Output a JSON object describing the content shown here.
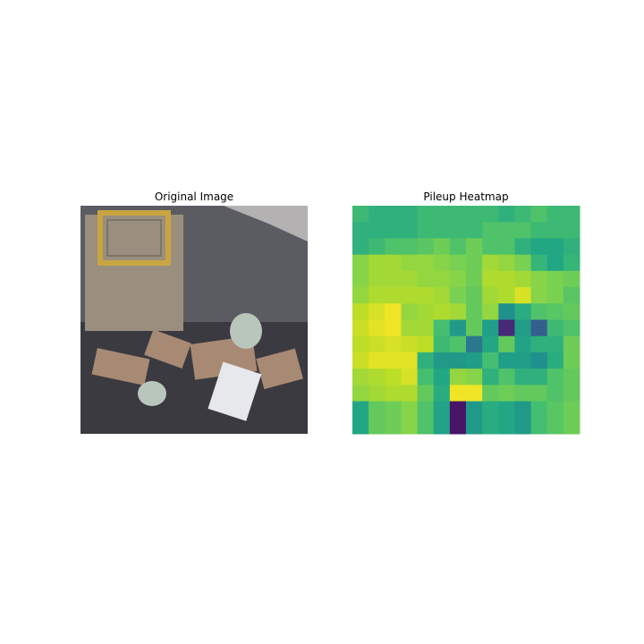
{
  "chart_data": [
    {
      "type": "image",
      "title": "Original Image",
      "description_palette": {
        "floor": "#3b3a40",
        "wall": "#5a5c62",
        "machine_body": "#9a8e7e",
        "machine_frame": "#c9a540",
        "cardboard": "#a88a74",
        "paper": "#e6e8ec",
        "bag": "#b8c6bc",
        "light": "#d8d6d4"
      }
    },
    {
      "type": "heatmap",
      "title": "Pileup Heatmap",
      "rows": 14,
      "cols": 14,
      "colormap": "viridis",
      "vmin": 0,
      "vmax": 1,
      "values": [
        [
          0.68,
          0.64,
          0.64,
          0.64,
          0.68,
          0.68,
          0.68,
          0.68,
          0.68,
          0.64,
          0.68,
          0.72,
          0.68,
          0.68
        ],
        [
          0.64,
          0.64,
          0.64,
          0.64,
          0.68,
          0.68,
          0.68,
          0.68,
          0.72,
          0.72,
          0.72,
          0.68,
          0.68,
          0.68
        ],
        [
          0.64,
          0.68,
          0.72,
          0.72,
          0.74,
          0.78,
          0.72,
          0.78,
          0.72,
          0.72,
          0.64,
          0.6,
          0.6,
          0.64
        ],
        [
          0.82,
          0.86,
          0.86,
          0.84,
          0.84,
          0.82,
          0.8,
          0.78,
          0.86,
          0.84,
          0.8,
          0.66,
          0.6,
          0.66
        ],
        [
          0.82,
          0.86,
          0.86,
          0.86,
          0.84,
          0.84,
          0.82,
          0.78,
          0.88,
          0.88,
          0.86,
          0.82,
          0.8,
          0.78
        ],
        [
          0.84,
          0.88,
          0.88,
          0.88,
          0.88,
          0.86,
          0.8,
          0.76,
          0.86,
          0.88,
          0.94,
          0.82,
          0.8,
          0.74
        ],
        [
          0.9,
          0.94,
          0.98,
          0.84,
          0.86,
          0.88,
          0.86,
          0.76,
          0.84,
          0.5,
          0.62,
          0.72,
          0.74,
          0.76
        ],
        [
          0.92,
          0.96,
          0.98,
          0.86,
          0.86,
          0.7,
          0.54,
          0.76,
          0.56,
          0.12,
          0.56,
          0.3,
          0.68,
          0.72
        ],
        [
          0.9,
          0.92,
          0.94,
          0.92,
          0.9,
          0.68,
          0.72,
          0.4,
          0.6,
          0.76,
          0.58,
          0.64,
          0.64,
          0.78
        ],
        [
          0.92,
          0.96,
          0.96,
          0.96,
          0.64,
          0.54,
          0.54,
          0.56,
          0.7,
          0.56,
          0.56,
          0.5,
          0.62,
          0.78
        ],
        [
          0.86,
          0.88,
          0.9,
          0.94,
          0.7,
          0.6,
          0.84,
          0.82,
          0.64,
          0.72,
          0.64,
          0.64,
          0.72,
          0.76
        ],
        [
          0.84,
          0.86,
          0.88,
          0.88,
          0.76,
          0.62,
          0.98,
          0.98,
          0.76,
          0.78,
          0.76,
          0.76,
          0.72,
          0.76
        ],
        [
          0.6,
          0.76,
          0.78,
          0.82,
          0.72,
          0.58,
          0.06,
          0.54,
          0.62,
          0.6,
          0.54,
          0.7,
          0.74,
          0.78
        ],
        [
          0.6,
          0.76,
          0.78,
          0.82,
          0.72,
          0.58,
          0.06,
          0.54,
          0.62,
          0.6,
          0.54,
          0.7,
          0.74,
          0.78
        ]
      ]
    }
  ]
}
